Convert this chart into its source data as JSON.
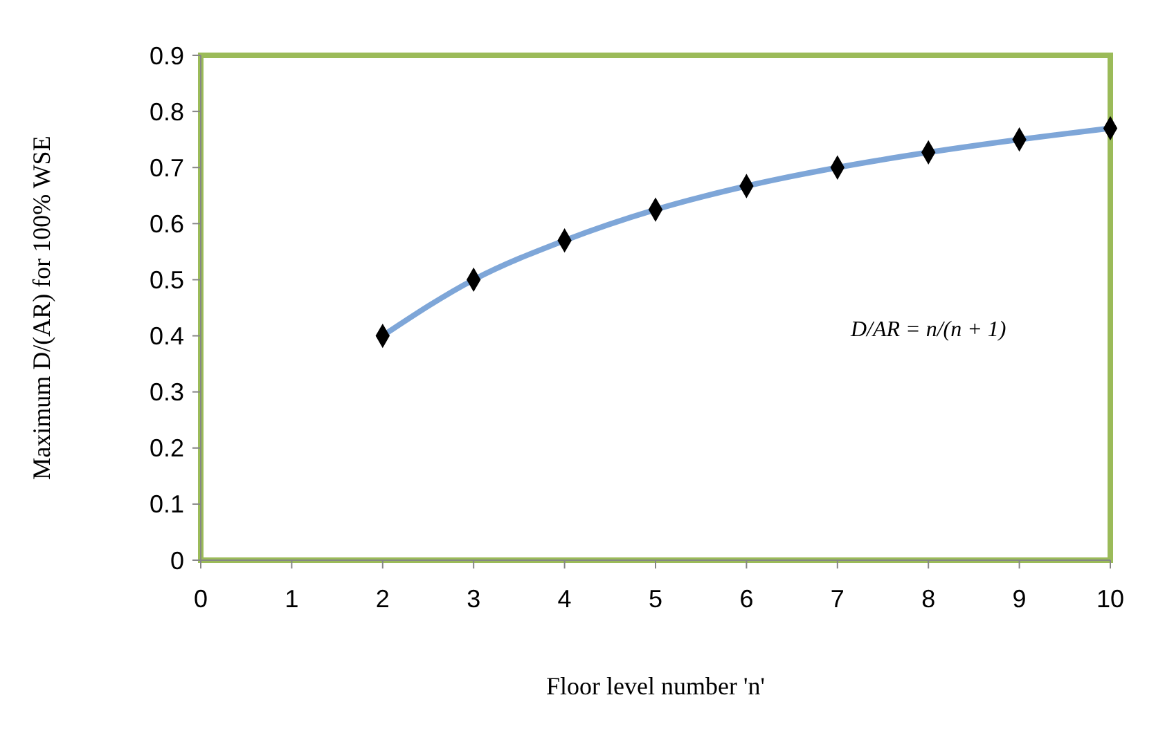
{
  "chart_data": {
    "type": "line",
    "xlabel": "Floor level number 'n'",
    "ylabel": "Maximum D/(AR) for 100% WSE",
    "x": [
      2,
      3,
      4,
      5,
      6,
      7,
      8,
      9,
      10
    ],
    "series": [
      {
        "color": "#7ea6d8",
        "values": [
          0.4,
          0.5,
          0.57,
          0.625,
          0.667,
          0.7,
          0.727,
          0.75,
          0.77
        ]
      }
    ],
    "xlim": [
      0,
      10
    ],
    "xticks": [
      0,
      1,
      2,
      3,
      4,
      5,
      6,
      7,
      8,
      9,
      10
    ],
    "ylim": [
      0,
      0.9
    ],
    "yticks": [
      0,
      0.1,
      0.2,
      0.3,
      0.4,
      0.5,
      0.6,
      0.7,
      0.8,
      0.9
    ],
    "marker": "diamond",
    "line_style": "solid",
    "grid": false,
    "annotations": [
      "D/AR = n/(n + 1)"
    ]
  }
}
